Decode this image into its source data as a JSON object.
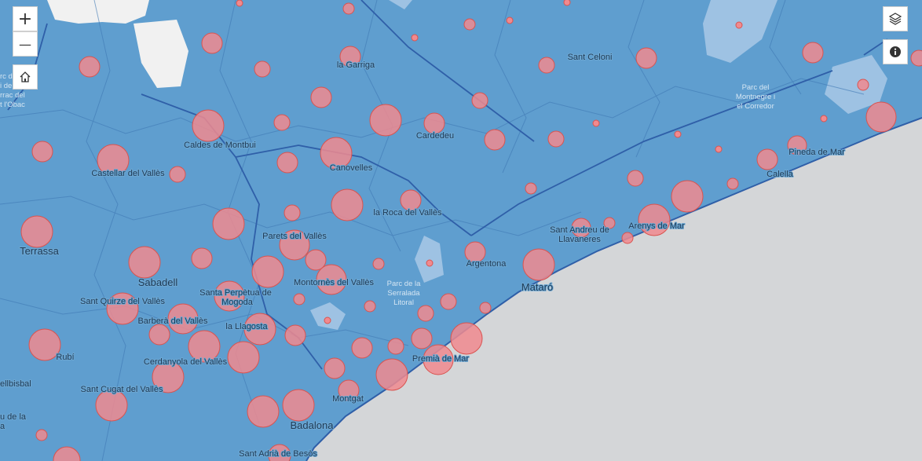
{
  "map": {
    "labels": [
      {
        "text": "la Garriga"
      },
      {
        "text": "Sant Celoni"
      },
      {
        "text": "Cardedeu"
      },
      {
        "text": "Caldes de Montbui"
      },
      {
        "text": "Castellar del Vallès"
      },
      {
        "text": "Canovelles"
      },
      {
        "text": "Pineda de Mar"
      },
      {
        "text": "Calella"
      },
      {
        "text": "la Roca del Vallès"
      },
      {
        "text": "Arenys de Mar"
      },
      {
        "text": "Sant Andreu de"
      },
      {
        "text": "Llavaneres"
      },
      {
        "text": "Terrassa"
      },
      {
        "text": "Parets del Vallès"
      },
      {
        "text": "Argentona"
      },
      {
        "text": "Sabadell"
      },
      {
        "text": "Montornès del Vallès"
      },
      {
        "text": "Mataró"
      },
      {
        "text": "Santa Perpètua de"
      },
      {
        "text": "Mogoda"
      },
      {
        "text": "Sant Quirze del Vallès"
      },
      {
        "text": "Barberà del Vallès"
      },
      {
        "text": "la Llagosta"
      },
      {
        "text": "Rubí"
      },
      {
        "text": "Cerdanyola del Vallès"
      },
      {
        "text": "Premià de Mar"
      },
      {
        "text": "ellbisbal"
      },
      {
        "text": "Sant Cugat del Vallès"
      },
      {
        "text": "Montgat"
      },
      {
        "text": "Badalona"
      },
      {
        "text": "Sant Adrià de Besòs"
      },
      {
        "text": "u de la"
      },
      {
        "text": "a"
      }
    ],
    "parks": [
      {
        "lines": [
          "Parc del",
          "Montnegre i",
          "el Corredor"
        ]
      },
      {
        "lines": [
          "Parc de la",
          "Serralada",
          "Litoral"
        ]
      },
      {
        "lines": [
          "rc d",
          "i de",
          "rrac del",
          "t l'Obac"
        ]
      }
    ],
    "bubble_color": "#f08a8f",
    "region_color": "#5f9ecf",
    "sea_color": "#d4d6d8"
  },
  "controls": {
    "zoom_in": "+",
    "zoom_out": "—",
    "home_icon": "home-icon",
    "layers_icon": "layers-icon",
    "info_icon": "info-icon"
  }
}
